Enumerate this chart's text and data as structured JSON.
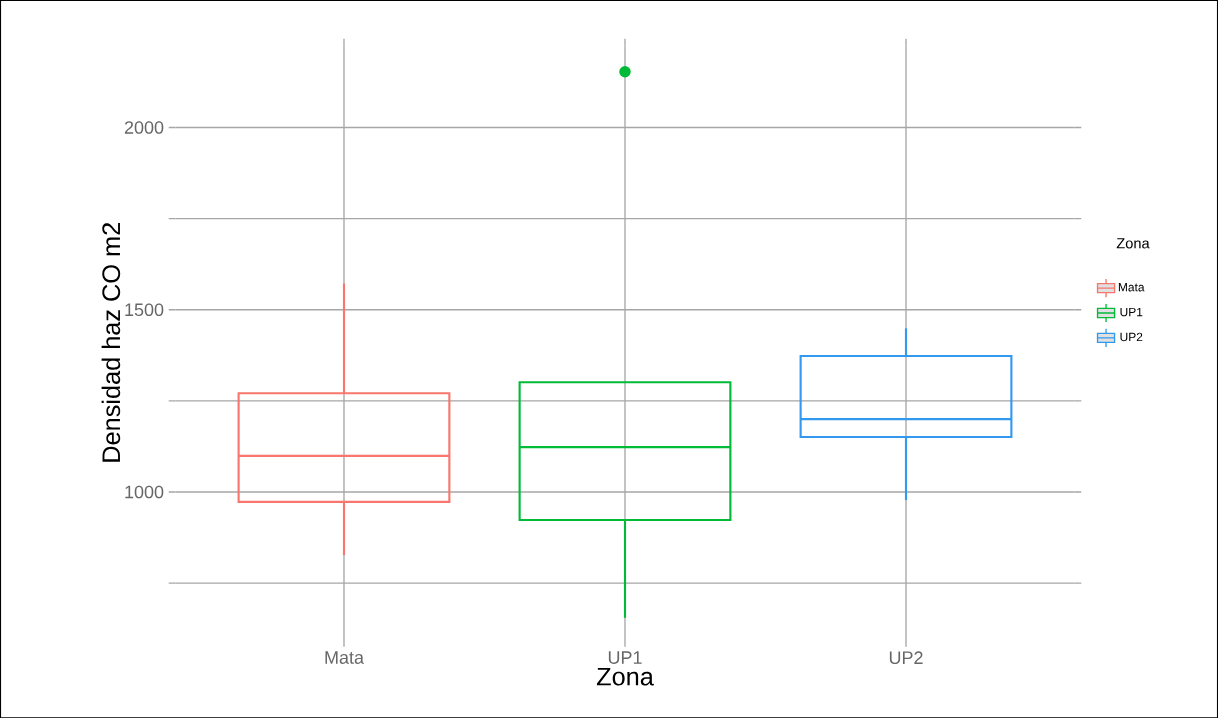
{
  "chart_data": {
    "type": "box",
    "xlabel": "Zona",
    "ylabel": "Densidad haz CO m2",
    "legend_title": "Zona",
    "categories": [
      "Mata",
      "UP1",
      "UP2"
    ],
    "series": [
      {
        "name": "Mata",
        "color": "#f8766d",
        "boxes": [
          {
            "low": 827,
            "q1": 973,
            "median": 1099,
            "q3": 1271,
            "high": 1572
          },
          null,
          null
        ]
      },
      {
        "name": "UP1",
        "color": "#00ba38",
        "boxes": [
          null,
          {
            "low": 655,
            "q1": 923,
            "median": 1123,
            "q3": 1301,
            "high": 1301,
            "outliers": [
              2153
            ]
          },
          null
        ]
      },
      {
        "name": "UP2",
        "color": "#3399ee",
        "boxes": [
          null,
          null,
          {
            "low": 978,
            "q1": 1151,
            "median": 1200,
            "q3": 1373,
            "high": 1449
          }
        ]
      }
    ],
    "ylim": [
      594,
      2225
    ],
    "yticks": [
      {
        "value": 750,
        "label": null
      },
      1000,
      {
        "value": 1250,
        "label": null
      },
      1500,
      {
        "value": 1750,
        "label": null
      },
      2000
    ],
    "grid": true,
    "legend": "right"
  }
}
